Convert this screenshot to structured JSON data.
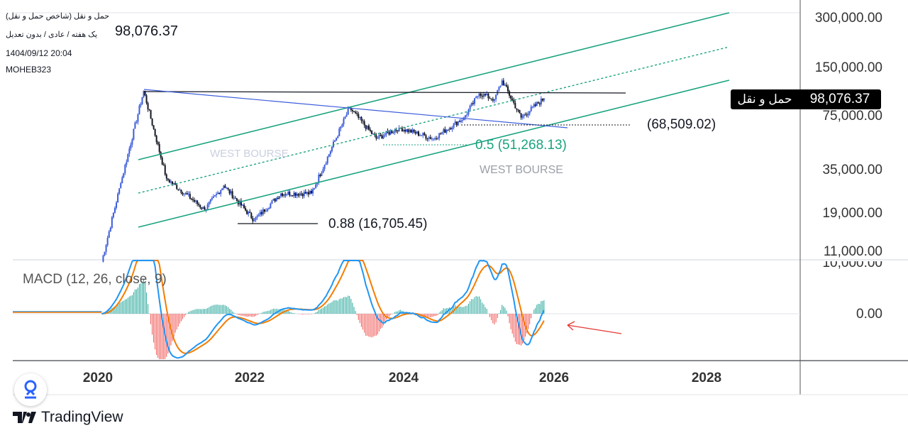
{
  "header": {
    "symbol_title": "حمل و نقل (شاخص حمل و نقل)",
    "settings": "یک هفته / عادی / بدون تعدیل",
    "datetime": "1404/09/12 20:04",
    "author": "MOHEB323",
    "last_price": "98,076.37"
  },
  "price_label": {
    "name": "حمل و نقل",
    "value": "98,076.37"
  },
  "annotations": {
    "level_088": "0.88 (16,705.45)",
    "level_05": "0.5 (51,268.13)",
    "level_support": "(68,509.02)",
    "watermark1": "WEST BOURSE",
    "watermark2": "WEST BOURSE"
  },
  "macd_label": "MACD (12, 26, close, 9)",
  "branding": "TradingView",
  "colors": {
    "channel": "#1aa37f",
    "trend": "#3b5bdb",
    "up": "#3b5bdb",
    "macd": "#2196f3",
    "signal": "#f57c00",
    "hist_pos": "#26a69a",
    "hist_neg": "#ef5350",
    "arrow": "#e53935"
  },
  "chart_data": {
    "type": "candlestick",
    "scale": "log",
    "y_ticks": [
      "300,000.00",
      "150,000.00",
      "75,000.00",
      "35,000.00",
      "19,000.00",
      "11,000.00"
    ],
    "y_tick_values": [
      300000,
      150000,
      75000,
      35000,
      19000,
      11000
    ],
    "macd_ticks": [
      "10,000.00",
      "0.00"
    ],
    "x_ticks": [
      "2020",
      "2022",
      "2024",
      "2026",
      "2028"
    ],
    "price_path": [
      [
        2020.05,
        10000
      ],
      [
        2020.3,
        30000
      ],
      [
        2020.6,
        109000
      ],
      [
        2020.9,
        32000
      ],
      [
        2021.4,
        20700
      ],
      [
        2021.65,
        29000
      ],
      [
        2022.05,
        17900
      ],
      [
        2022.4,
        26000
      ],
      [
        2022.8,
        26000
      ],
      [
        2023.3,
        86000
      ],
      [
        2023.65,
        56000
      ],
      [
        2023.95,
        65000
      ],
      [
        2024.4,
        56000
      ],
      [
        2024.8,
        75000
      ],
      [
        2025.0,
        105000
      ],
      [
        2025.2,
        97000
      ],
      [
        2025.3,
        126000
      ],
      [
        2025.55,
        75000
      ],
      [
        2025.85,
        98076
      ]
    ]
  }
}
